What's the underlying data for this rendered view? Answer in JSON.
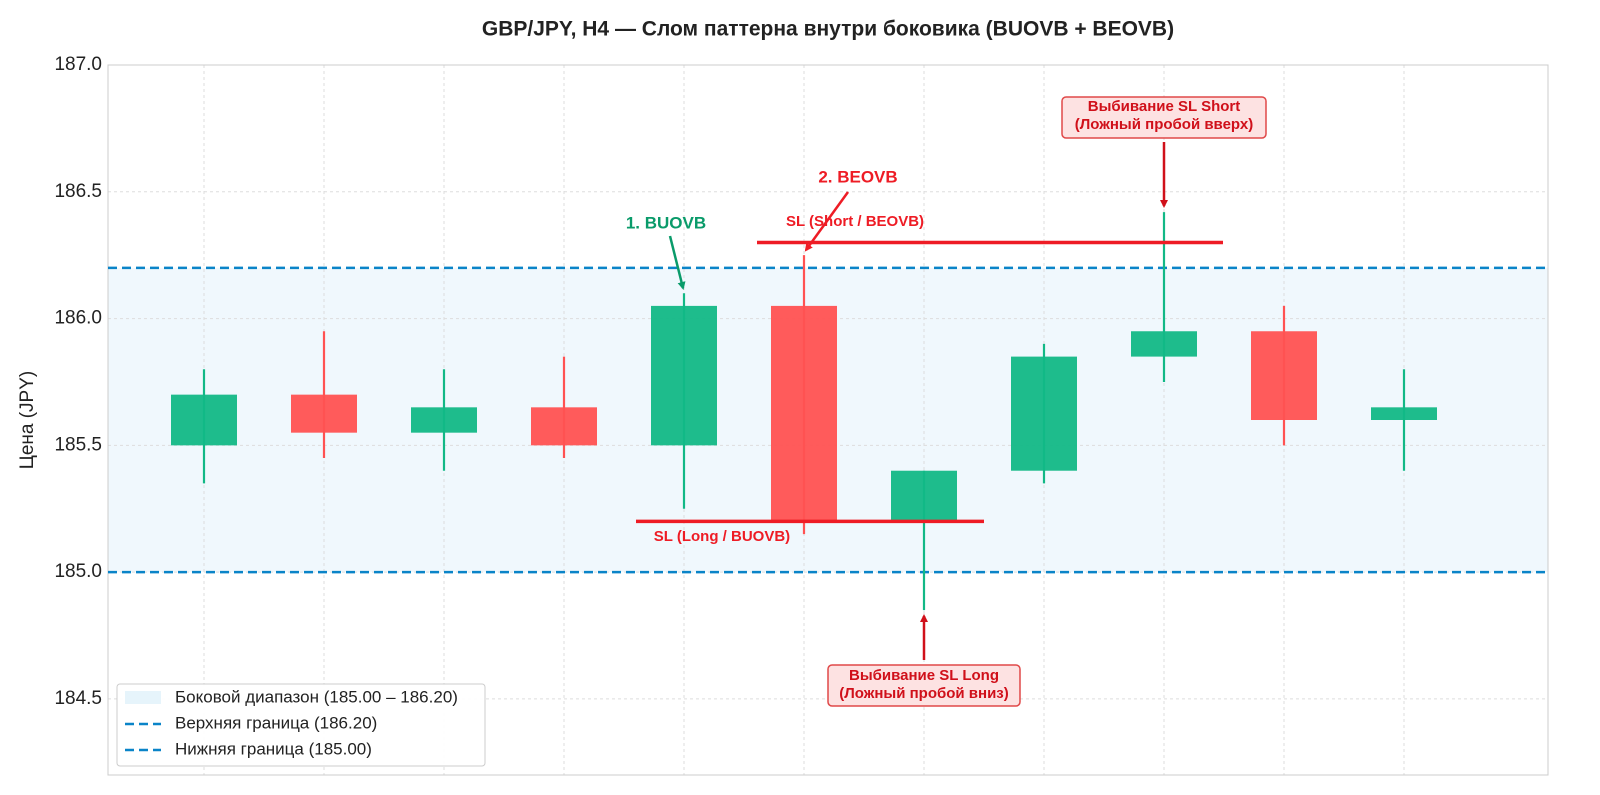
{
  "chart_data": {
    "type": "candlestick",
    "title": "GBP/JPY, H4 — Слом паттерна внутри боковика (BUOVB + BEOVB)",
    "ylabel": "Цена (JPY)",
    "ylim": [
      184.2,
      187.0
    ],
    "yticks": [
      {
        "value": 184.5,
        "label": "184.5"
      },
      {
        "value": 185.0,
        "label": "185.0"
      },
      {
        "value": 185.5,
        "label": "185.5"
      },
      {
        "value": 186.0,
        "label": "186.0"
      },
      {
        "value": 186.5,
        "label": "186.5"
      },
      {
        "value": 187.0,
        "label": "187.0"
      }
    ],
    "grid": true,
    "up_color": "#12b886",
    "down_color": "#ff5252",
    "candles": {
      "open": [
        185.5,
        185.7,
        185.55,
        185.65,
        185.5,
        186.05,
        185.2,
        185.4,
        185.85,
        185.95,
        185.6
      ],
      "high": [
        185.8,
        185.95,
        185.8,
        185.85,
        186.1,
        186.25,
        185.4,
        185.9,
        186.42,
        186.05,
        185.8
      ],
      "low": [
        185.35,
        185.45,
        185.4,
        185.45,
        185.25,
        185.15,
        184.85,
        185.35,
        185.75,
        185.5,
        185.4
      ],
      "close": [
        185.7,
        185.55,
        185.65,
        185.5,
        186.05,
        185.2,
        185.4,
        185.85,
        185.95,
        185.6,
        185.65
      ]
    },
    "range": {
      "name": "Боковой диапазон (185.00 – 186.20)",
      "low": 185.0,
      "high": 186.2,
      "color": "#e6f4fb"
    },
    "lines": [
      {
        "name": "Верхняя граница (186.20)",
        "value": 186.2,
        "color": "#0a84c8"
      },
      {
        "name": "Нижняя граница (185.00)",
        "value": 185.0,
        "color": "#0a84c8"
      }
    ],
    "levels": [
      {
        "label": "SL (Long / BUOVB)",
        "value": 185.2,
        "color": "#ee1c25"
      },
      {
        "label": "SL (Short / BEOVB)",
        "value": 186.3,
        "color": "#ee1c25"
      }
    ],
    "annotations": [
      {
        "text": [
          "1. BUOVB"
        ],
        "color": "#0a9b6a"
      },
      {
        "text": [
          "2. BEOVB"
        ],
        "color": "#ee1c25"
      },
      {
        "text": [
          "Выбивание SL Short",
          "(Ложный пробой вверх)"
        ],
        "color": "#d0101a"
      },
      {
        "text": [
          "Выбивание SL Long",
          "(Ложный пробой вниз)"
        ],
        "color": "#d0101a"
      }
    ],
    "legend": "lower left"
  }
}
